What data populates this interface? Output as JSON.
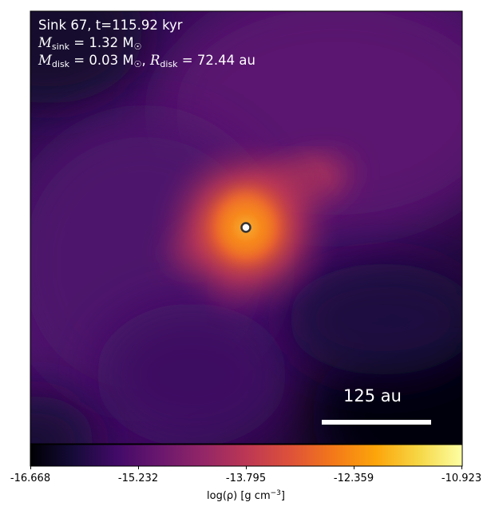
{
  "annotation": {
    "line1": "Sink 67, t=115.92 kyr",
    "line2_m": "M",
    "line2_sub": "sink",
    "line2_rest": " = 1.32 M",
    "line2_sun": "☉",
    "line3_m": "M",
    "line3_sub": "disk",
    "line3_mid": " = 0.03 M",
    "line3_sun": "☉",
    "line3_sep": ", ",
    "line3_r": "R",
    "line3_rsub": "disk",
    "line3_rest": " = 72.44 au"
  },
  "scale_bar": {
    "label": "125 au"
  },
  "colorbar": {
    "colormap": "inferno",
    "ticks": [
      "-16.668",
      "-15.232",
      "-13.795",
      "-12.359",
      "-10.923"
    ],
    "label_pre": "log(ρ) [g cm",
    "label_exp": "−3",
    "label_post": "]"
  },
  "colors": {
    "sink_marker_ring": "#333333",
    "sink_marker_fill": "#ffffff",
    "scale_bar": "#ffffff"
  }
}
